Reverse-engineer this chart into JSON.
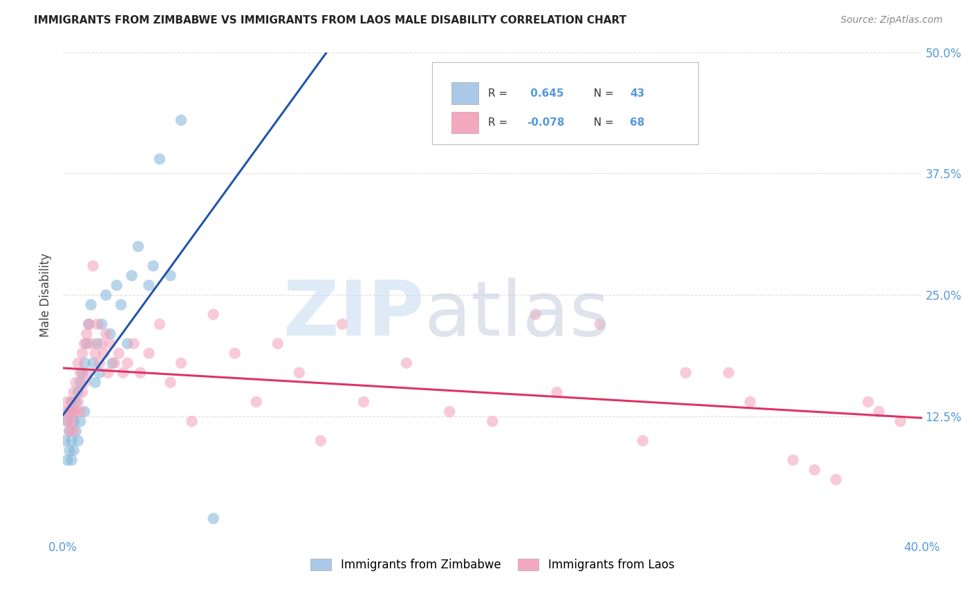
{
  "title": "IMMIGRANTS FROM ZIMBABWE VS IMMIGRANTS FROM LAOS MALE DISABILITY CORRELATION CHART",
  "source": "Source: ZipAtlas.com",
  "ylabel": "Male Disability",
  "xlim": [
    0.0,
    0.4
  ],
  "ylim": [
    0.0,
    0.5
  ],
  "R_zimbabwe": 0.645,
  "N_zimbabwe": 43,
  "R_laos": -0.078,
  "N_laos": 68,
  "color_zimbabwe": "#7fb3d9",
  "color_laos": "#f4a0b8",
  "line_color_zimbabwe": "#2255aa",
  "line_color_laos": "#dd3366",
  "zimbabwe_x": [
    0.001,
    0.002,
    0.002,
    0.003,
    0.003,
    0.003,
    0.004,
    0.004,
    0.004,
    0.005,
    0.005,
    0.005,
    0.006,
    0.006,
    0.007,
    0.007,
    0.008,
    0.008,
    0.009,
    0.01,
    0.01,
    0.011,
    0.012,
    0.013,
    0.014,
    0.015,
    0.016,
    0.017,
    0.018,
    0.02,
    0.022,
    0.023,
    0.025,
    0.027,
    0.03,
    0.032,
    0.035,
    0.04,
    0.042,
    0.045,
    0.05,
    0.055,
    0.07
  ],
  "zimbabwe_y": [
    0.1,
    0.12,
    0.08,
    0.13,
    0.11,
    0.09,
    0.14,
    0.1,
    0.08,
    0.13,
    0.12,
    0.09,
    0.14,
    0.11,
    0.15,
    0.1,
    0.16,
    0.12,
    0.17,
    0.18,
    0.13,
    0.2,
    0.22,
    0.24,
    0.18,
    0.16,
    0.2,
    0.17,
    0.22,
    0.25,
    0.21,
    0.18,
    0.26,
    0.24,
    0.2,
    0.27,
    0.3,
    0.26,
    0.28,
    0.39,
    0.27,
    0.43,
    0.02
  ],
  "laos_x": [
    0.001,
    0.002,
    0.002,
    0.003,
    0.003,
    0.004,
    0.004,
    0.005,
    0.005,
    0.005,
    0.006,
    0.006,
    0.007,
    0.007,
    0.008,
    0.008,
    0.009,
    0.009,
    0.01,
    0.01,
    0.011,
    0.011,
    0.012,
    0.013,
    0.014,
    0.015,
    0.016,
    0.017,
    0.018,
    0.019,
    0.02,
    0.021,
    0.022,
    0.024,
    0.026,
    0.028,
    0.03,
    0.033,
    0.036,
    0.04,
    0.045,
    0.05,
    0.055,
    0.06,
    0.07,
    0.08,
    0.09,
    0.1,
    0.11,
    0.12,
    0.13,
    0.14,
    0.16,
    0.18,
    0.2,
    0.22,
    0.23,
    0.25,
    0.27,
    0.29,
    0.31,
    0.32,
    0.34,
    0.35,
    0.36,
    0.375,
    0.38,
    0.39
  ],
  "laos_y": [
    0.13,
    0.14,
    0.12,
    0.13,
    0.11,
    0.14,
    0.12,
    0.15,
    0.13,
    0.11,
    0.16,
    0.13,
    0.18,
    0.14,
    0.17,
    0.13,
    0.19,
    0.15,
    0.2,
    0.16,
    0.21,
    0.17,
    0.22,
    0.2,
    0.28,
    0.19,
    0.22,
    0.18,
    0.2,
    0.19,
    0.21,
    0.17,
    0.2,
    0.18,
    0.19,
    0.17,
    0.18,
    0.2,
    0.17,
    0.19,
    0.22,
    0.16,
    0.18,
    0.12,
    0.23,
    0.19,
    0.14,
    0.2,
    0.17,
    0.1,
    0.22,
    0.14,
    0.18,
    0.13,
    0.12,
    0.23,
    0.15,
    0.22,
    0.1,
    0.17,
    0.17,
    0.14,
    0.08,
    0.07,
    0.06,
    0.14,
    0.13,
    0.12
  ],
  "legend_box_color_zimbabwe": "#aac8e8",
  "legend_box_color_laos": "#f4a8c0",
  "grid_color": "#cccccc",
  "tick_color": "#5599dd",
  "watermark_zip_color": "#c8dff0",
  "watermark_atlas_color": "#c0c8d8"
}
